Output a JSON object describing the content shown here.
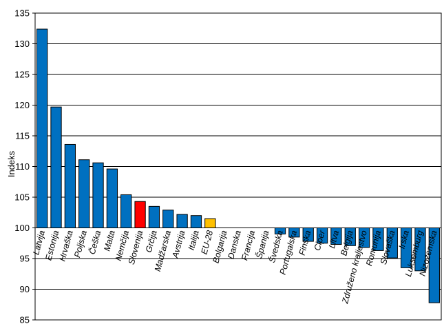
{
  "chart_data": {
    "type": "bar",
    "title": "",
    "xlabel": "",
    "ylabel": "Indeks",
    "ylim": [
      85,
      135
    ],
    "yticks": [
      85,
      90,
      95,
      100,
      105,
      110,
      115,
      120,
      125,
      130,
      135
    ],
    "baseline": 100,
    "grid": true,
    "legend": "none",
    "categories": [
      "Latvija",
      "Estonija",
      "Hrvaška",
      "Poljska",
      "Češka",
      "Malta",
      "Nemčija",
      "Slovenija",
      "Grčija",
      "Madžarska",
      "Avstrija",
      "Italija",
      "EU-28",
      "Bolgarija",
      "Danska",
      "Francija",
      "Španija",
      "Švedska",
      "Portugalska",
      "Finska",
      "Ciper",
      "Litva",
      "Belgija",
      "Združeno kraljestvo",
      "Romunija",
      "Slovaška",
      "Irska",
      "Luksemburg",
      "Nizozemska"
    ],
    "values": [
      132.4,
      119.7,
      113.6,
      111.1,
      110.6,
      109.6,
      105.4,
      104.3,
      103.5,
      102.9,
      102.2,
      102.0,
      101.5,
      100.0,
      100.0,
      100.0,
      100.0,
      99.0,
      98.5,
      97.8,
      97.5,
      97.3,
      97.1,
      96.8,
      96.3,
      95.1,
      93.5,
      93.0,
      87.8
    ],
    "colors": {
      "default": "#0070c0",
      "highlight": "#ff0000",
      "average": "#ffc000",
      "highlight_category": "Slovenija",
      "average_category": "EU-28"
    }
  }
}
